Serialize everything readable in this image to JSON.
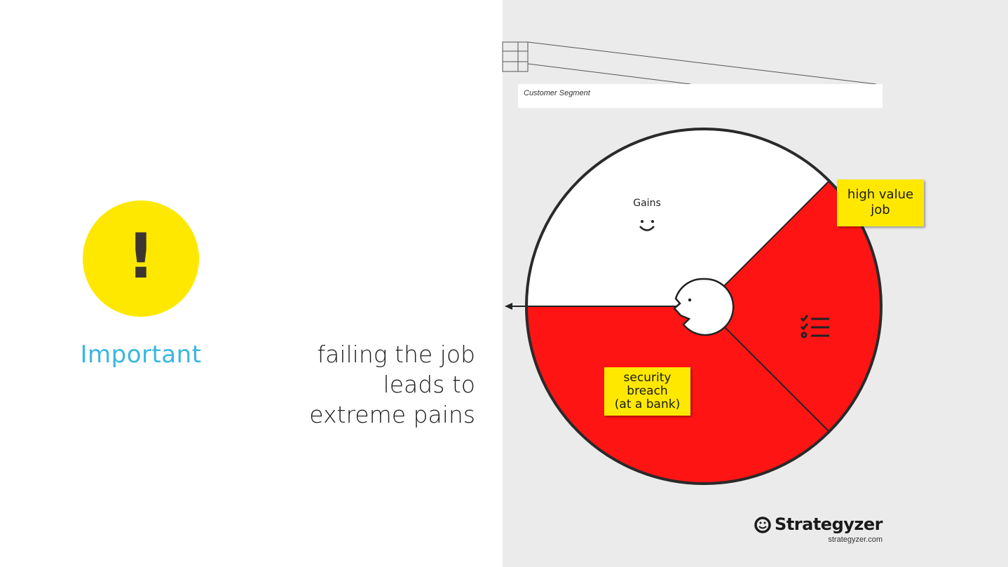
{
  "left_panel": {
    "icon_name": "exclamation-icon",
    "icon_glyph": "!",
    "important_label": "Important",
    "statement_lines": [
      "failing the job",
      "leads to",
      "extreme pains"
    ]
  },
  "canvas": {
    "segment_label": "Customer Segment",
    "gains_label": "Gains",
    "gains_icon": "smiley-icon",
    "jobs_icon": "checklist-icon",
    "customer_icon": "customer-head-icon",
    "sticky_high_value": [
      "high value",
      "job"
    ],
    "sticky_security": [
      "security",
      "breach",
      "(at a  bank)"
    ]
  },
  "branding": {
    "name": "Strategyzer",
    "url": "strategyzer.com"
  },
  "colors": {
    "important_circle": "#ffe800",
    "important_text": "#3ab7e0",
    "pain_red": "#ff1414",
    "sticky_yellow": "#ffe800",
    "canvas_background": "#ebebeb"
  }
}
